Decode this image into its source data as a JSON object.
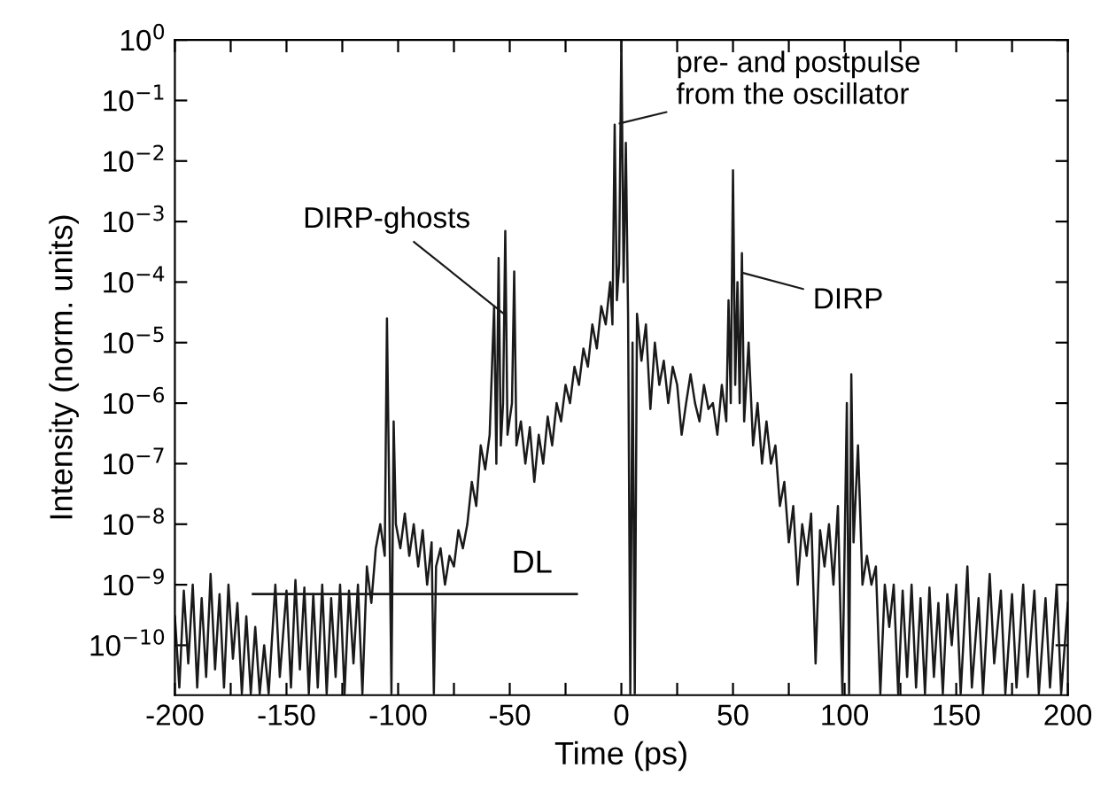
{
  "chart_data": {
    "type": "line",
    "xlabel": "Time (ps)",
    "ylabel": "Intensity (norm. units)",
    "log": "y",
    "grid": false,
    "legend": false,
    "marker": "none",
    "line_style": "solid",
    "xlim": [
      -200,
      200
    ],
    "xticks": [
      -200,
      {
        "value": -175,
        "label": null
      },
      -150,
      {
        "value": -125,
        "label": null
      },
      -100,
      {
        "value": -75,
        "label": null
      },
      -50,
      {
        "value": -25,
        "label": null
      },
      0,
      {
        "value": 25,
        "label": null
      },
      50,
      {
        "value": 75,
        "label": null
      },
      100,
      {
        "value": 125,
        "label": null
      },
      150,
      {
        "value": 175,
        "label": null
      },
      200
    ],
    "ylim": [
      1.5e-11,
      1
    ],
    "yticks": [
      {
        "value": 1,
        "label": "10$^{0}$"
      },
      {
        "value": 0.1,
        "label": "10$^{−1}$"
      },
      {
        "value": 0.01,
        "label": "10$^{−2}$"
      },
      {
        "value": 0.001,
        "label": "10$^{−3}$"
      },
      {
        "value": 0.0001,
        "label": "10$^{−4}$"
      },
      {
        "value": 1e-05,
        "label": "10$^{−5}$"
      },
      {
        "value": 1e-06,
        "label": "10$^{−6}$"
      },
      {
        "value": 1e-07,
        "label": "10$^{−7}$"
      },
      {
        "value": 1e-08,
        "label": "10$^{−8}$"
      },
      {
        "value": 1e-09,
        "label": "10$^{−9}$"
      },
      {
        "value": 1e-10,
        "label": "10$^{−10}$"
      }
    ],
    "annotations": [
      {
        "text": "DIRP-ghosts",
        "x": -50,
        "y": 2.5e-05
      },
      {
        "text": "pre- and postpulse\nfrom the oscillator",
        "x": -3,
        "y": 0.04
      },
      {
        "text": "DIRP",
        "x": 52,
        "y": 0.00015
      },
      {
        "text": "DL",
        "x": -40,
        "y": 7e-10
      }
    ],
    "series": [
      {
        "color": "#1a1a1a",
        "x": [
          -200,
          -198,
          -196,
          -194,
          -192,
          -190,
          -188,
          -186,
          -184,
          -182,
          -180,
          -178,
          -176,
          -174,
          -172,
          -170,
          -168,
          -166,
          -164,
          -162,
          -160,
          -158,
          -155,
          -153,
          -150,
          -148,
          -146,
          -144,
          -142,
          -140,
          -138,
          -136,
          -134,
          -132,
          -130,
          -128,
          -126,
          -124,
          -122,
          -120,
          -118,
          -116,
          -114,
          -112,
          -110,
          -108,
          -106,
          -105,
          -104,
          -103,
          -102,
          -101,
          -99,
          -97,
          -95,
          -93,
          -91,
          -89,
          -87,
          -85,
          -84,
          -83,
          -81,
          -79,
          -77,
          -75,
          -73,
          -71,
          -69,
          -67,
          -65,
          -63,
          -61,
          -59,
          -57,
          -56,
          -55,
          -54,
          -53,
          -52,
          -51,
          -49,
          -48,
          -47,
          -45,
          -43,
          -41,
          -39,
          -37,
          -35,
          -33,
          -31,
          -29,
          -27,
          -25,
          -23,
          -21,
          -19,
          -17,
          -15,
          -13,
          -11,
          -9,
          -7,
          -5,
          -4,
          -3,
          -2,
          -1,
          0,
          1,
          2,
          3,
          4,
          5,
          6,
          7,
          9,
          11,
          13,
          15,
          17,
          19,
          21,
          23,
          25,
          27,
          29,
          31,
          33,
          35,
          37,
          39,
          41,
          43,
          45,
          47,
          48,
          49,
          50,
          51,
          52,
          53,
          54,
          55,
          57,
          59,
          61,
          63,
          65,
          67,
          69,
          71,
          73,
          75,
          77,
          79,
          81,
          83,
          85,
          87,
          89,
          91,
          93,
          95,
          97,
          99,
          101,
          102,
          103,
          104,
          106,
          108,
          110,
          112,
          114,
          116,
          118,
          120,
          122,
          124,
          126,
          128,
          130,
          132,
          134,
          136,
          138,
          140,
          142,
          144,
          146,
          148,
          150,
          152,
          155,
          157,
          160,
          162,
          165,
          167,
          170,
          172,
          175,
          177,
          180,
          182,
          185,
          187,
          190,
          192,
          195,
          197,
          200
        ],
        "values": [
          3e-10,
          2e-11,
          8e-10,
          5e-11,
          1e-09,
          2e-11,
          6e-10,
          3e-11,
          1.5e-09,
          4e-11,
          7e-10,
          2e-11,
          1e-09,
          6e-11,
          5e-10,
          1.6e-11,
          3e-10,
          1.6e-11,
          2e-10,
          1.6e-11,
          1e-10,
          1.6e-11,
          1e-09,
          3e-11,
          8e-10,
          2e-11,
          1.2e-09,
          4e-11,
          9e-10,
          1.6e-11,
          7e-10,
          2e-11,
          1e-09,
          1.6e-11,
          6e-10,
          3e-11,
          1e-09,
          1.6e-11,
          8e-10,
          5e-11,
          1e-09,
          1.6e-11,
          2e-09,
          5e-10,
          4e-09,
          1e-08,
          3e-09,
          2.5e-05,
          3e-08,
          1.6e-11,
          5e-07,
          1e-08,
          4e-09,
          1.5e-08,
          3e-09,
          1e-08,
          2e-09,
          8e-09,
          1e-09,
          5e-09,
          1.6e-11,
          2e-09,
          4e-09,
          1e-09,
          3e-09,
          2e-09,
          8e-09,
          4e-09,
          1e-08,
          5e-08,
          2e-08,
          2e-07,
          8e-08,
          3e-07,
          4e-05,
          1e-07,
          0.00025,
          2e-07,
          1e-06,
          0.0007,
          3e-07,
          1e-06,
          0.00015,
          2e-07,
          5e-07,
          1e-07,
          4e-07,
          5e-08,
          3e-07,
          1e-07,
          6e-07,
          2e-07,
          1e-06,
          5e-07,
          2e-06,
          1e-06,
          4e-06,
          2e-06,
          8e-06,
          4e-06,
          2e-05,
          8e-06,
          4e-05,
          2e-05,
          0.0001,
          2e-05,
          0.04,
          5e-05,
          0.0002,
          1,
          0.0001,
          0.02,
          3e-05,
          1.6e-11,
          1e-05,
          1.6e-11,
          3e-05,
          5e-06,
          2e-05,
          8e-07,
          1e-05,
          2e-06,
          5e-06,
          1e-06,
          4e-06,
          2e-06,
          3e-07,
          1e-06,
          3e-06,
          1e-06,
          5e-07,
          2e-06,
          8e-07,
          1e-06,
          3e-07,
          2e-06,
          5e-07,
          5e-05,
          1e-06,
          0.007,
          2e-06,
          0.0001,
          1e-06,
          0.0003,
          5e-07,
          1e-05,
          2e-07,
          1e-06,
          1e-07,
          5e-07,
          1e-07,
          2e-07,
          2e-08,
          5e-08,
          5e-09,
          2e-08,
          1e-09,
          1e-08,
          3e-09,
          1.5e-08,
          5e-11,
          8e-09,
          2e-09,
          1e-08,
          1e-09,
          2e-08,
          1.6e-11,
          1e-06,
          1.6e-11,
          3e-06,
          5e-09,
          2e-07,
          1e-09,
          3e-09,
          1e-09,
          2e-09,
          1.6e-11,
          1e-09,
          2e-10,
          1e-09,
          1.6e-11,
          8e-10,
          3e-11,
          1e-09,
          2e-11,
          6e-10,
          1.6e-11,
          9e-10,
          3e-11,
          5e-10,
          1.6e-11,
          7e-10,
          1e-10,
          1e-09,
          1.6e-11,
          2e-09,
          2e-11,
          6e-10,
          1.6e-11,
          1.5e-09,
          5e-11,
          8e-10,
          1.6e-11,
          7e-10,
          2e-11,
          1e-09,
          3e-11,
          8e-10,
          1.6e-11,
          6e-10,
          2e-11,
          1e-09,
          1.6e-11,
          5e-10
        ]
      },
      {
        "type": "line",
        "color": "#1a1a1a",
        "x": [
          -165,
          -20
        ],
        "values": [
          7e-10,
          7e-10
        ]
      }
    ]
  }
}
